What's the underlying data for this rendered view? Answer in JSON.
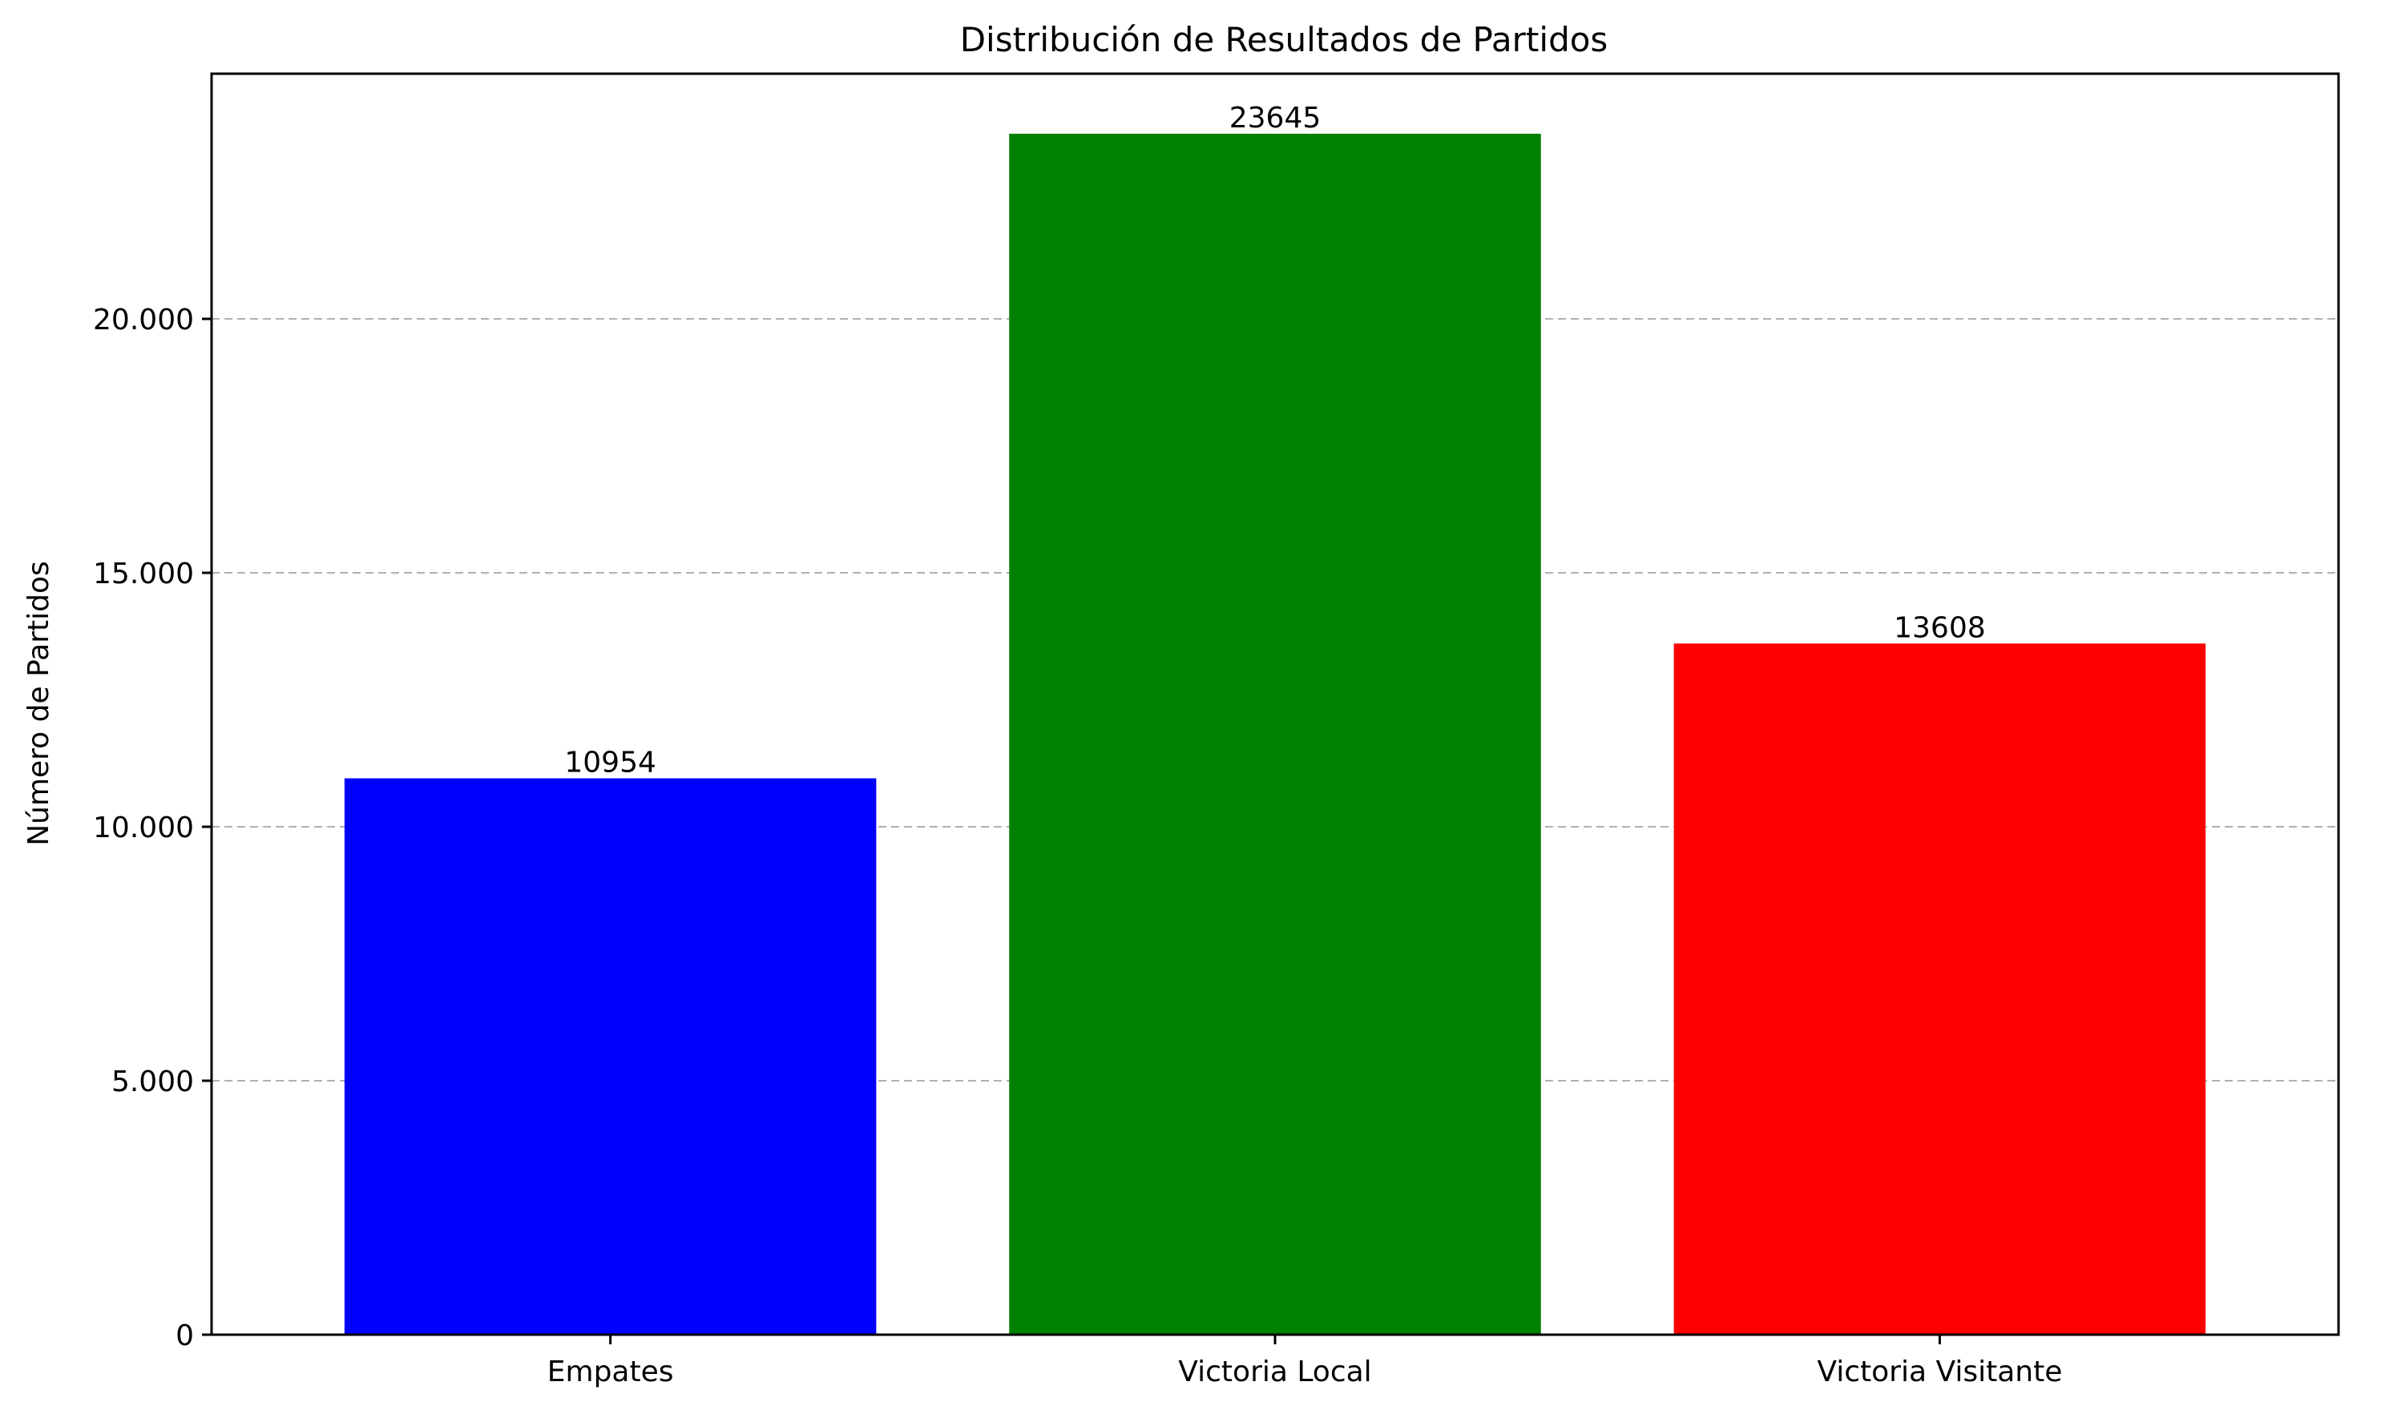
{
  "chart_data": {
    "type": "bar",
    "title": "Distribución de Resultados de Partidos",
    "xlabel": "",
    "ylabel": "Número de Partidos",
    "categories": [
      "Empates",
      "Victoria Local",
      "Victoria Visitante"
    ],
    "values": [
      10954,
      23645,
      13608
    ],
    "value_labels": [
      "10954",
      "23645",
      "13608"
    ],
    "colors": [
      "#0000ff",
      "#008000",
      "#ff0000"
    ],
    "ylim": [
      0,
      24827
    ],
    "yticks": [
      0,
      5000,
      10000,
      15000,
      20000
    ],
    "ytick_labels": [
      "0",
      "5.000",
      "10.000",
      "15.000",
      "20.000"
    ],
    "grid": {
      "axis": "y",
      "style": "dashed",
      "color": "#b0b0b0"
    },
    "legend": "none"
  }
}
